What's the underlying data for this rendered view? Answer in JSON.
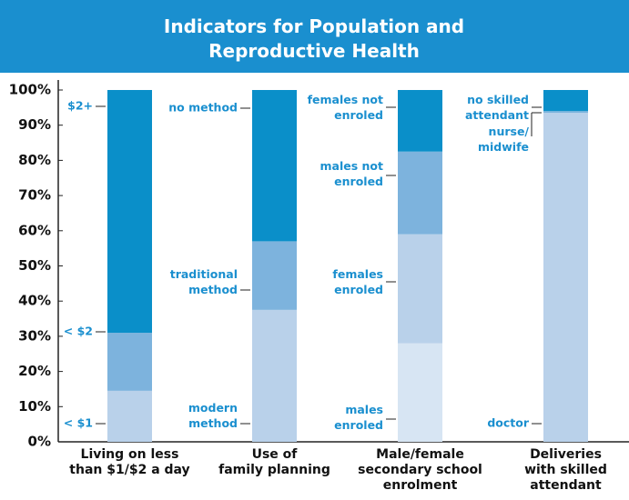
{
  "chart_data": {
    "type": "stacked_bar",
    "title": "Indicators for Population and\nReproductive Health",
    "ylim": [
      0,
      100
    ],
    "yticks": [
      {
        "value": 0,
        "label": "0%"
      },
      {
        "value": 10,
        "label": "10%"
      },
      {
        "value": 20,
        "label": "20%"
      },
      {
        "value": 30,
        "label": "30%"
      },
      {
        "value": 40,
        "label": "40%"
      },
      {
        "value": 50,
        "label": "50%"
      },
      {
        "value": 60,
        "label": "60%"
      },
      {
        "value": 70,
        "label": "70%"
      },
      {
        "value": 80,
        "label": "80%"
      },
      {
        "value": 90,
        "label": "90%"
      },
      {
        "value": 100,
        "label": "100%"
      }
    ],
    "bars": [
      {
        "category": "Living on less\nthan $1/$2 a day",
        "segments": [
          {
            "label": "< $1",
            "value": 14.5,
            "color": "#b9d1ea"
          },
          {
            "label": "< $2",
            "value": 16.5,
            "color": "#7db3dd"
          },
          {
            "label": "$2+",
            "value": 69,
            "color": "#0a8fc9"
          }
        ]
      },
      {
        "category": "Use of\nfamily planning",
        "segments": [
          {
            "label": "modern\nmethod",
            "value": 37.5,
            "color": "#b9d1ea"
          },
          {
            "label": "traditional\nmethod",
            "value": 19.5,
            "color": "#7db3dd"
          },
          {
            "label": "no method",
            "value": 43,
            "color": "#0a8fc9"
          }
        ]
      },
      {
        "category": "Male/female\nsecondary school\nenrolment",
        "segments": [
          {
            "label": "males\nenroled",
            "value": 28,
            "color": "#d7e5f3"
          },
          {
            "label": "females\nenroled",
            "value": 31,
            "color": "#b9d1ea"
          },
          {
            "label": "males not\nenroled",
            "value": 23.5,
            "color": "#7db3dd"
          },
          {
            "label": "females not\nenroled",
            "value": 17.5,
            "color": "#0a8fc9"
          }
        ]
      },
      {
        "category": "Deliveries\nwith skilled\nattendant",
        "segments": [
          {
            "label": "doctor",
            "value": 93.5,
            "color": "#b9d1ea"
          },
          {
            "label": "nurse/\nmidwife",
            "value": 0.5,
            "color": "#7db3dd"
          },
          {
            "label": "no skilled\nattendant",
            "value": 6,
            "color": "#0a8fc9"
          }
        ]
      }
    ]
  }
}
